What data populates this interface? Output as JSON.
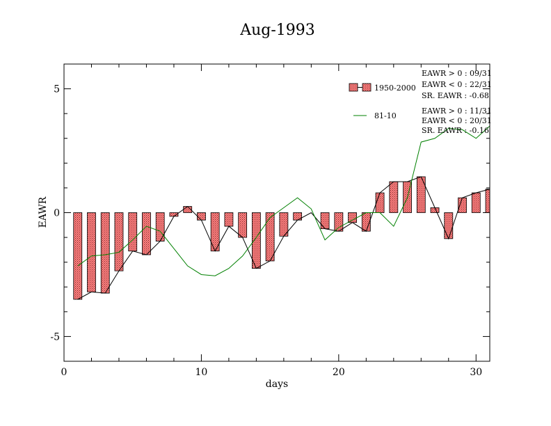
{
  "chart_data": {
    "type": "bar",
    "title": "Aug-1993",
    "xlabel": "days",
    "ylabel": "EAWR",
    "xlim": [
      0,
      31
    ],
    "ylim": [
      -6,
      6
    ],
    "x_ticks": [
      0,
      10,
      20,
      30
    ],
    "y_ticks": [
      -5,
      0,
      5
    ],
    "x_tick_labels": [
      "0",
      "10",
      "20",
      "30"
    ],
    "y_tick_labels": [
      "-5",
      "0",
      "5"
    ],
    "grid": false,
    "legend_position": "top-right",
    "x": [
      1,
      2,
      3,
      4,
      5,
      6,
      7,
      8,
      9,
      10,
      11,
      12,
      13,
      14,
      15,
      16,
      17,
      18,
      19,
      20,
      21,
      22,
      23,
      24,
      25,
      26,
      27,
      28,
      29,
      30,
      31
    ],
    "series": [
      {
        "name": "1950-2000",
        "style": "bars",
        "color": "#ff8080",
        "values": [
          -3.5,
          -3.2,
          -3.25,
          -2.35,
          -1.55,
          -1.7,
          -1.15,
          -0.15,
          0.25,
          -0.3,
          -1.55,
          -0.55,
          -1.0,
          -2.25,
          -1.95,
          -0.95,
          -0.3,
          0.0,
          -0.65,
          -0.75,
          -0.4,
          -0.75,
          0.8,
          1.25,
          1.25,
          1.45,
          0.2,
          -1.05,
          0.6,
          0.8,
          0.95
        ]
      },
      {
        "name": "81-10",
        "style": "line",
        "color": "#008000",
        "values": [
          -2.15,
          -1.75,
          -1.7,
          -1.6,
          -1.1,
          -0.55,
          -0.75,
          -1.45,
          -2.15,
          -2.5,
          -2.55,
          -2.25,
          -1.75,
          -1.0,
          -0.2,
          0.2,
          0.6,
          0.15,
          -1.1,
          -0.6,
          -0.3,
          0.0,
          0.0,
          -0.55,
          0.6,
          2.85,
          3.0,
          3.4,
          3.35,
          3.0,
          3.5
        ]
      }
    ],
    "connector_color": "#000000",
    "stats": [
      [
        "EAWR > 0 : 09/31",
        "EAWR < 0 : 22/31",
        "SR. EAWR : -0.68"
      ],
      [
        "EAWR > 0 : 11/31",
        "EAWR < 0 : 20/31",
        "SR. EAWR : -0.16"
      ]
    ]
  }
}
